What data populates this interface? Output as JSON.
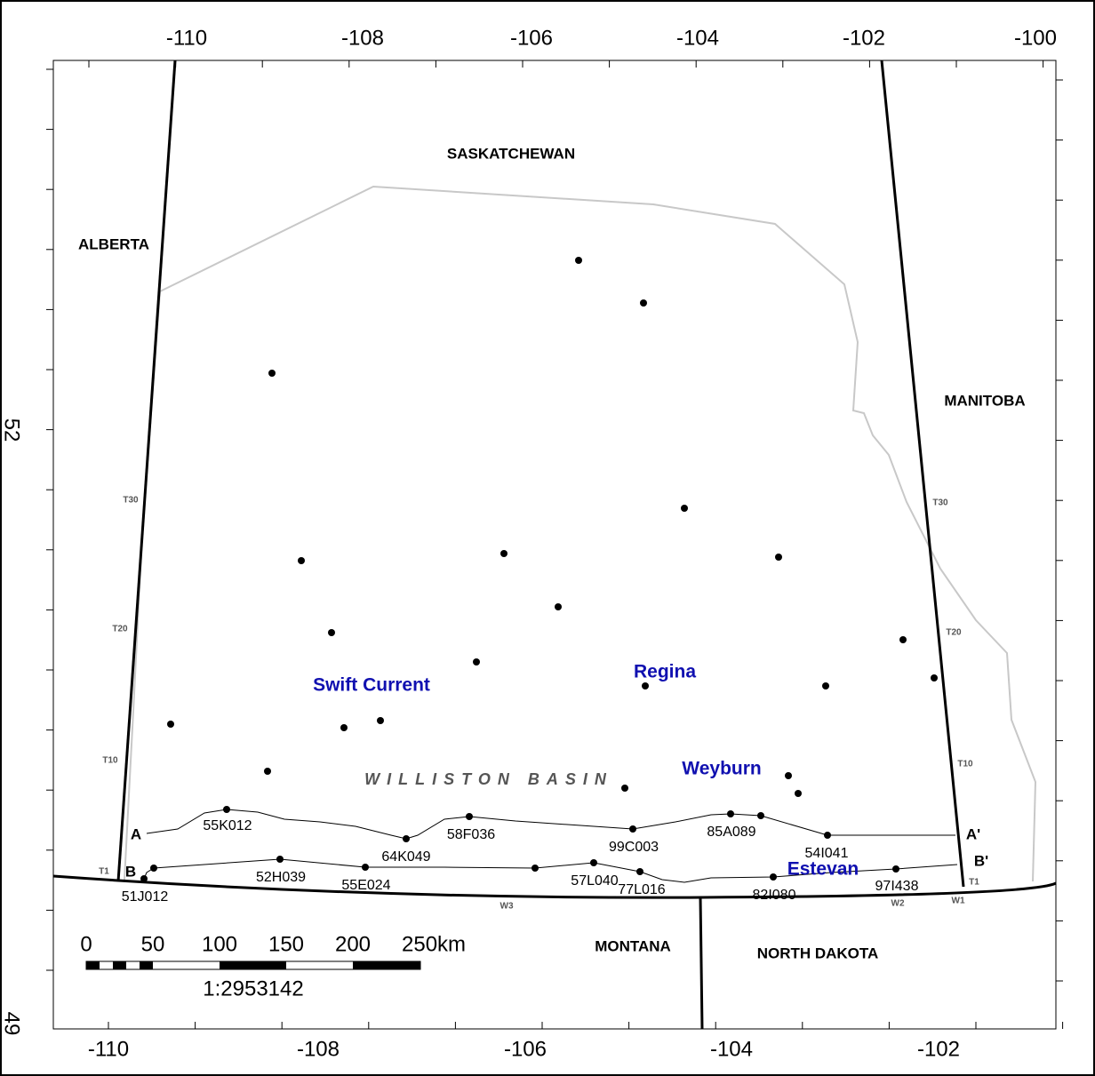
{
  "map": {
    "longitude_labels_top": [
      "-110",
      "-108",
      "-106",
      "-104",
      "-102",
      "-100"
    ],
    "longitude_labels_bottom": [
      "-110",
      "-108",
      "-106",
      "-104",
      "-102"
    ],
    "latitude_labels": [
      "52",
      "49"
    ],
    "regions": [
      "SASKATCHEWAN",
      "ALBERTA",
      "MANITOBA",
      "MONTANA",
      "NORTH DAKOTA"
    ],
    "cities": [
      "Swift Current",
      "Regina",
      "Weyburn",
      "Estevan"
    ],
    "basin": "WILLISTON BASIN",
    "section_ends": [
      "A",
      "A'",
      "B",
      "B'"
    ],
    "wells": [
      "55K012",
      "58F036",
      "99C003",
      "85A089",
      "54I041",
      "64K049",
      "52H039",
      "55E024",
      "57L040",
      "77L016",
      "82I080",
      "97I438",
      "51J012"
    ],
    "townships": [
      "T30",
      "T20",
      "T10",
      "T1",
      "T30",
      "T20",
      "T10",
      "T1",
      "W3",
      "W2",
      "W1"
    ],
    "scale_labels": [
      "0",
      "50",
      "100",
      "150",
      "200",
      "250km"
    ],
    "scale_ratio": "1:2953142"
  }
}
